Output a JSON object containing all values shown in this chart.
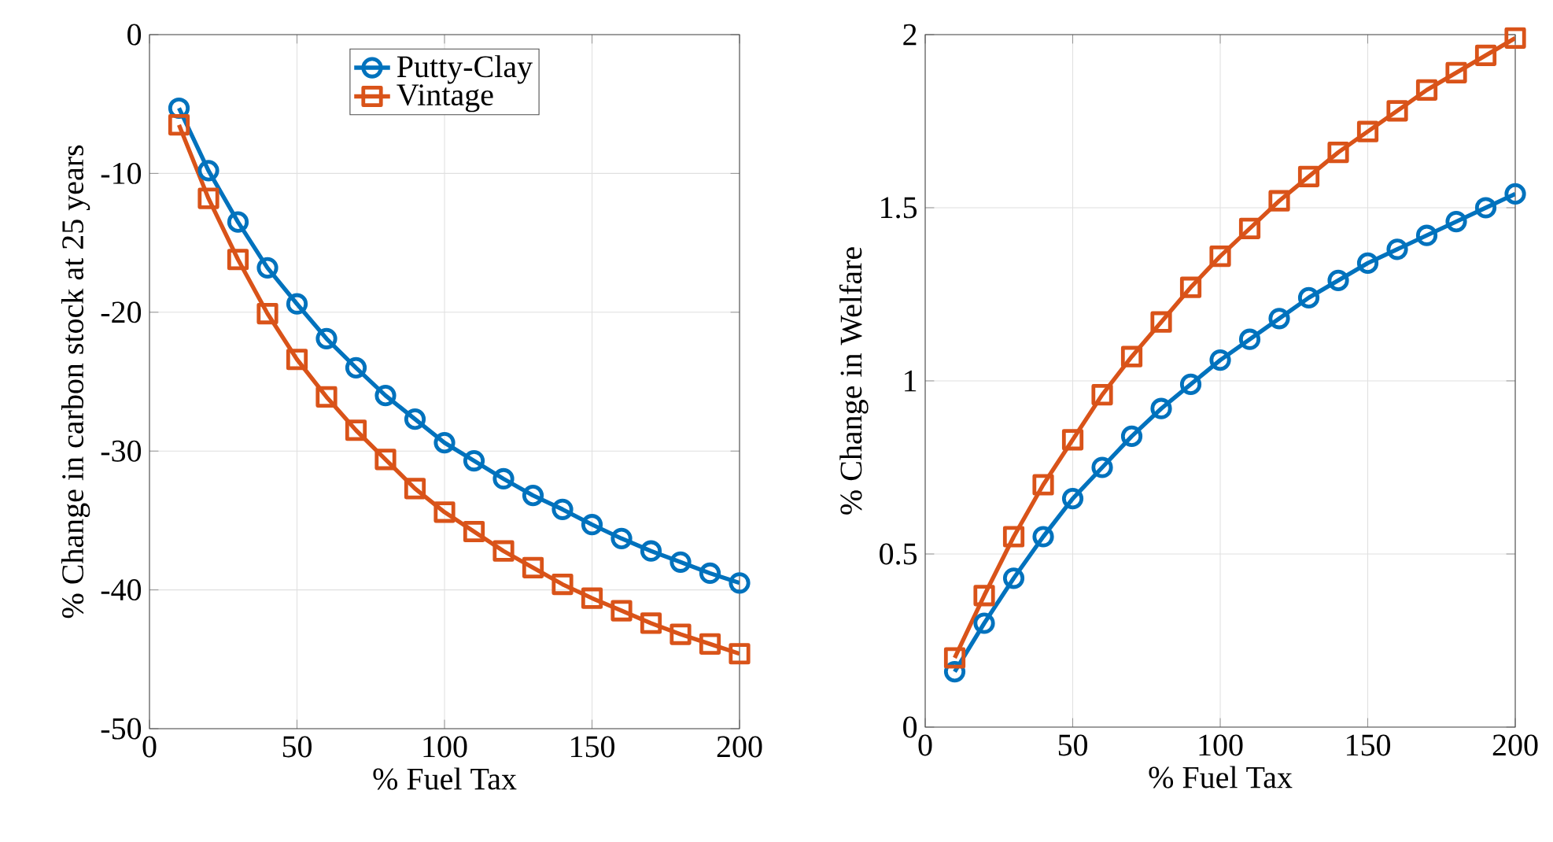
{
  "chart_data": [
    {
      "type": "line",
      "xlabel": "% Fuel Tax",
      "ylabel": "% Change in carbon stock at 25 years",
      "x": [
        10,
        20,
        30,
        40,
        50,
        60,
        70,
        80,
        90,
        100,
        110,
        120,
        130,
        140,
        150,
        160,
        170,
        180,
        190,
        200
      ],
      "xlim": [
        0,
        200
      ],
      "xticks": [
        0,
        50,
        100,
        150,
        200
      ],
      "ylim": [
        -50,
        0
      ],
      "yticks": [
        -50,
        -40,
        -30,
        -20,
        -10,
        0
      ],
      "grid": true,
      "legend": "top",
      "line_style": "solid",
      "series": [
        {
          "name": "Putty-Clay",
          "color": "#0072bd",
          "marker": "circle",
          "values": [
            -5.3,
            -9.8,
            -13.5,
            -16.8,
            -19.4,
            -21.9,
            -24.0,
            -26.0,
            -27.7,
            -29.4,
            -30.7,
            -32.0,
            -33.2,
            -34.2,
            -35.3,
            -36.3,
            -37.2,
            -38.0,
            -38.8,
            -39.5
          ]
        },
        {
          "name": "Vintage",
          "color": "#d95319",
          "marker": "square",
          "values": [
            -6.5,
            -11.8,
            -16.2,
            -20.1,
            -23.4,
            -26.1,
            -28.5,
            -30.6,
            -32.7,
            -34.4,
            -35.8,
            -37.2,
            -38.4,
            -39.6,
            -40.6,
            -41.5,
            -42.4,
            -43.2,
            -43.9,
            -44.6
          ]
        }
      ]
    },
    {
      "type": "line",
      "xlabel": "% Fuel Tax",
      "ylabel": "% Change in Welfare",
      "x": [
        10,
        20,
        30,
        40,
        50,
        60,
        70,
        80,
        90,
        100,
        110,
        120,
        130,
        140,
        150,
        160,
        170,
        180,
        190,
        200
      ],
      "xlim": [
        0,
        200
      ],
      "xticks": [
        0,
        50,
        100,
        150,
        200
      ],
      "ylim": [
        0,
        2
      ],
      "yticks": [
        0,
        0.5,
        1,
        1.5,
        2
      ],
      "grid": true,
      "line_style": "solid",
      "series": [
        {
          "color": "#0072bd",
          "marker": "circle",
          "values": [
            0.16,
            0.3,
            0.43,
            0.55,
            0.66,
            0.75,
            0.84,
            0.92,
            0.99,
            1.06,
            1.12,
            1.18,
            1.24,
            1.29,
            1.34,
            1.38,
            1.42,
            1.46,
            1.5,
            1.54
          ]
        },
        {
          "color": "#d95319",
          "marker": "square",
          "values": [
            0.2,
            0.38,
            0.55,
            0.7,
            0.83,
            0.96,
            1.07,
            1.17,
            1.27,
            1.36,
            1.44,
            1.52,
            1.59,
            1.66,
            1.72,
            1.78,
            1.84,
            1.89,
            1.94,
            1.99
          ]
        }
      ]
    }
  ]
}
